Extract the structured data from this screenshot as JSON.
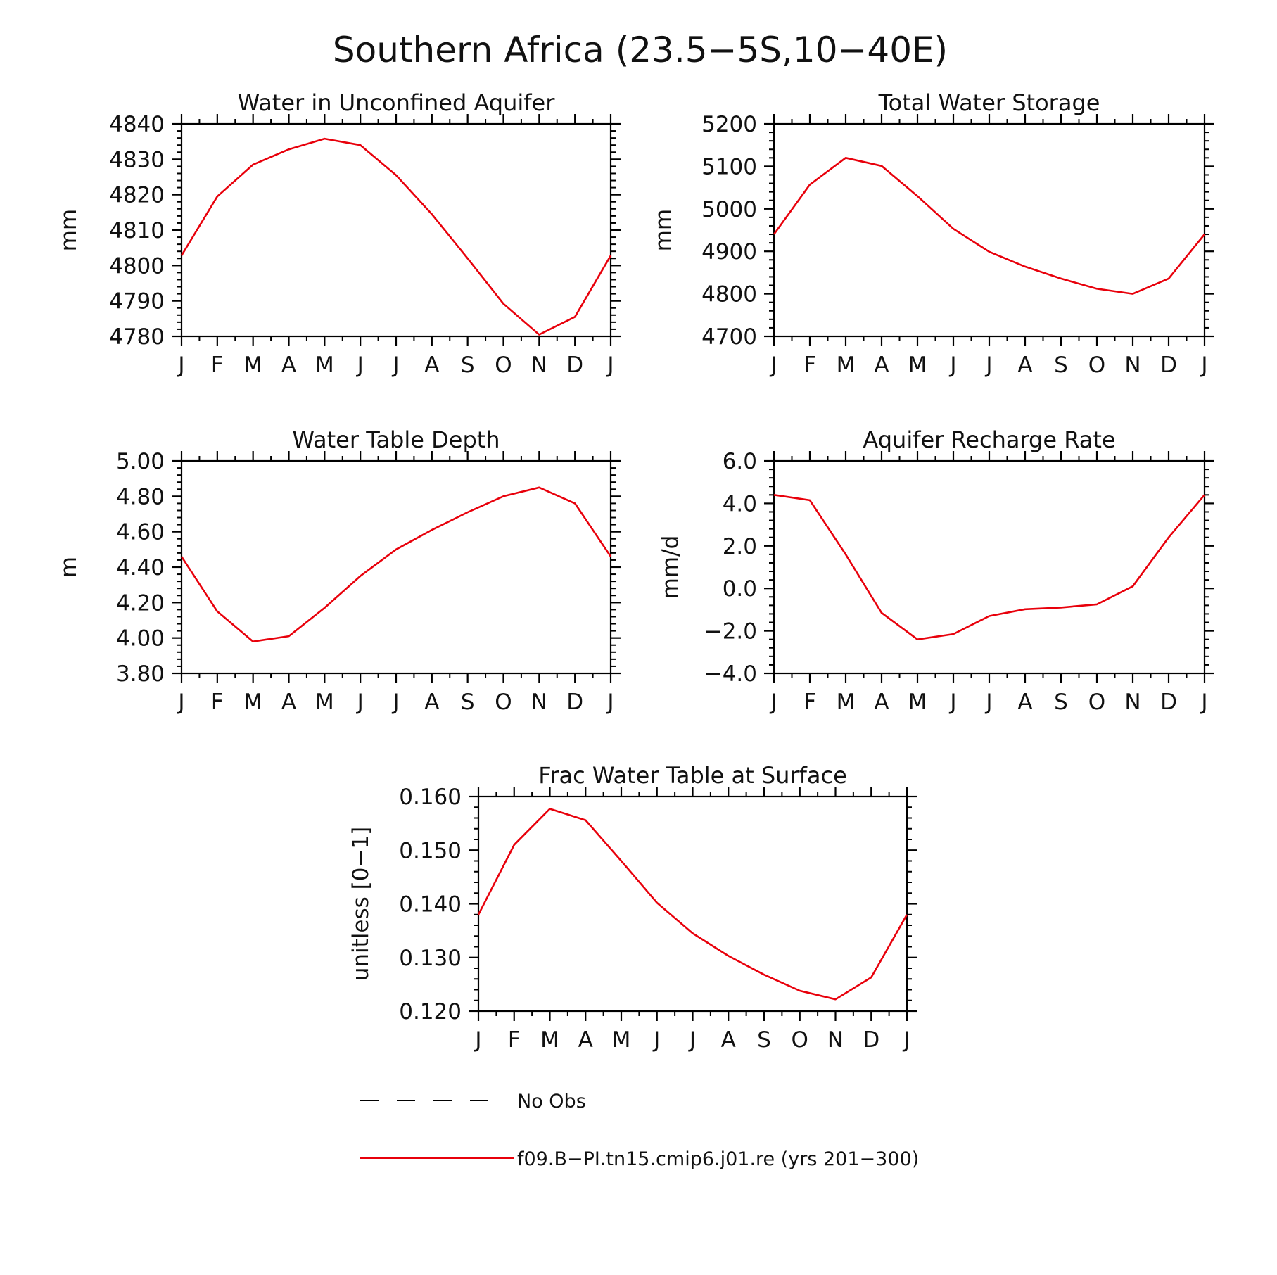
{
  "figure": {
    "title": "Southern Africa (23.5−5S,10−40E)"
  },
  "legend": {
    "items": [
      {
        "label": "No Obs",
        "style": "dashed",
        "color": "#000000"
      },
      {
        "label": "f09.B−PI.tn15.cmip6.j01.re (yrs 201−300)",
        "style": "solid",
        "color": "#e8000b"
      }
    ]
  },
  "chart_data": [
    {
      "type": "line",
      "title": "Water in Unconfined Aquifer",
      "ylabel": "mm",
      "xlabel": "",
      "categories": [
        "J",
        "F",
        "M",
        "A",
        "M",
        "J",
        "J",
        "A",
        "S",
        "O",
        "N",
        "D",
        "J"
      ],
      "ylim": [
        4780,
        4840
      ],
      "yticks": [
        4780,
        4790,
        4800,
        4810,
        4820,
        4830,
        4840
      ],
      "ytick_labels": [
        "4780",
        "4790",
        "4800",
        "4810",
        "4820",
        "4830",
        "4840"
      ],
      "series": [
        {
          "values": [
            4802.8,
            4819.5,
            4828.5,
            4832.8,
            4835.8,
            4834.0,
            4825.5,
            4814.5,
            4802.0,
            4789.2,
            4780.5,
            4785.5,
            4802.8
          ],
          "color": "#e8000b"
        }
      ]
    },
    {
      "type": "line",
      "title": "Total Water Storage",
      "ylabel": "mm",
      "xlabel": "",
      "categories": [
        "J",
        "F",
        "M",
        "A",
        "M",
        "J",
        "J",
        "A",
        "S",
        "O",
        "N",
        "D",
        "J"
      ],
      "ylim": [
        4700,
        5200
      ],
      "yticks": [
        4700,
        4800,
        4900,
        5000,
        5100,
        5200
      ],
      "ytick_labels": [
        "4700",
        "4800",
        "4900",
        "5000",
        "5100",
        "5200"
      ],
      "series": [
        {
          "values": [
            4940,
            5057,
            5120,
            5101,
            5030,
            4953,
            4899,
            4864,
            4836,
            4812,
            4800,
            4836,
            4940
          ],
          "color": "#e8000b"
        }
      ]
    },
    {
      "type": "line",
      "title": "Water Table Depth",
      "ylabel": "m",
      "xlabel": "",
      "categories": [
        "J",
        "F",
        "M",
        "A",
        "M",
        "J",
        "J",
        "A",
        "S",
        "O",
        "N",
        "D",
        "J"
      ],
      "ylim": [
        3.8,
        5.0
      ],
      "yticks": [
        3.8,
        4.0,
        4.2,
        4.4,
        4.6,
        4.8,
        5.0
      ],
      "ytick_labels": [
        "3.80",
        "4.00",
        "4.20",
        "4.40",
        "4.60",
        "4.80",
        "5.00"
      ],
      "series": [
        {
          "values": [
            4.46,
            4.15,
            3.98,
            4.01,
            4.17,
            4.35,
            4.5,
            4.61,
            4.71,
            4.8,
            4.85,
            4.76,
            4.46
          ],
          "color": "#e8000b"
        }
      ]
    },
    {
      "type": "line",
      "title": "Aquifer Recharge Rate",
      "ylabel": "mm/d",
      "xlabel": "",
      "categories": [
        "J",
        "F",
        "M",
        "A",
        "M",
        "J",
        "J",
        "A",
        "S",
        "O",
        "N",
        "D",
        "J"
      ],
      "ylim": [
        -4.0,
        6.0
      ],
      "yticks": [
        -4.0,
        -2.0,
        0.0,
        2.0,
        4.0,
        6.0
      ],
      "ytick_labels": [
        "−4.0",
        "−2.0",
        "0.0",
        "2.0",
        "4.0",
        "6.0"
      ],
      "series": [
        {
          "values": [
            4.4,
            4.15,
            1.6,
            -1.15,
            -2.4,
            -2.15,
            -1.3,
            -0.98,
            -0.9,
            -0.75,
            0.1,
            2.4,
            4.4
          ],
          "color": "#e8000b"
        }
      ]
    },
    {
      "type": "line",
      "title": "Frac Water Table at Surface",
      "ylabel": "unitless [0−1]",
      "xlabel": "",
      "categories": [
        "J",
        "F",
        "M",
        "A",
        "M",
        "J",
        "J",
        "A",
        "S",
        "O",
        "N",
        "D",
        "J"
      ],
      "ylim": [
        0.12,
        0.16
      ],
      "yticks": [
        0.12,
        0.13,
        0.14,
        0.15,
        0.16
      ],
      "ytick_labels": [
        "0.120",
        "0.130",
        "0.140",
        "0.150",
        "0.160"
      ],
      "series": [
        {
          "values": [
            0.138,
            0.151,
            0.1577,
            0.1556,
            0.148,
            0.1402,
            0.1345,
            0.1303,
            0.1268,
            0.1238,
            0.1222,
            0.1263,
            0.138
          ],
          "color": "#e8000b"
        }
      ]
    }
  ]
}
